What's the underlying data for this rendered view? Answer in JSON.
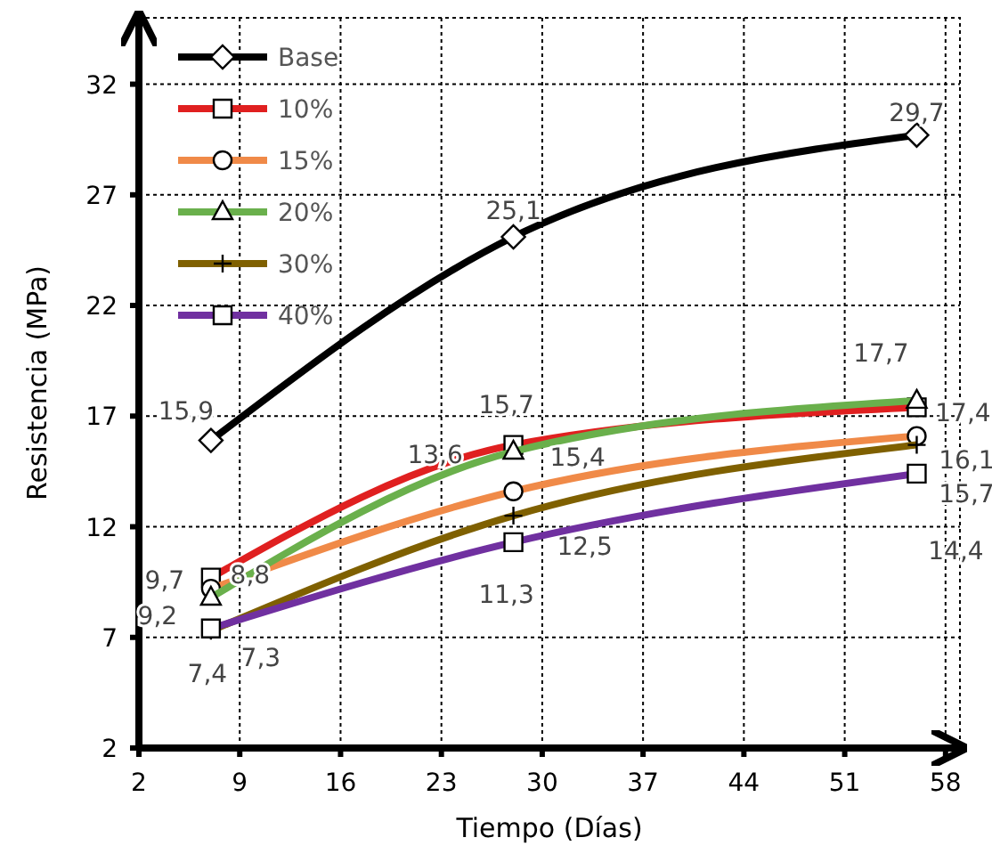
{
  "chart_data": {
    "type": "line",
    "xlabel": "Tiempo (Días)",
    "ylabel": "Resistencia (MPa)",
    "x": [
      7,
      28,
      56
    ],
    "xlim": [
      2,
      59
    ],
    "ylim": [
      2,
      35
    ],
    "xticks": [
      2,
      9,
      16,
      23,
      30,
      37,
      44,
      51,
      58
    ],
    "yticks": [
      2,
      7,
      12,
      17,
      22,
      27,
      32
    ],
    "grid": true,
    "legend": "top left",
    "line_style": "solid",
    "series": [
      {
        "name": "Base",
        "color": "#000000",
        "marker": "diamond",
        "values": [
          15.9,
          25.1,
          29.7
        ],
        "value_labels": [
          "15,9",
          "25,1",
          "29,7"
        ]
      },
      {
        "name": "10%",
        "color": "#e02020",
        "marker": "square",
        "values": [
          9.7,
          15.7,
          17.4
        ],
        "value_labels": [
          "9,7",
          "15,7",
          "17,4"
        ]
      },
      {
        "name": "15%",
        "color": "#f08a48",
        "marker": "circle",
        "values": [
          9.2,
          13.6,
          16.1
        ],
        "value_labels": [
          "9,2",
          "13,6",
          "16,1"
        ]
      },
      {
        "name": "20%",
        "color": "#6ab04c",
        "marker": "triangle",
        "values": [
          8.8,
          15.4,
          17.7
        ],
        "value_labels": [
          "8,8",
          "15,4",
          "17,7"
        ]
      },
      {
        "name": "30%",
        "color": "#7f6000",
        "marker": "cross",
        "values": [
          7.3,
          12.5,
          15.7
        ],
        "value_labels": [
          "7,3",
          "12,5",
          "15,7"
        ]
      },
      {
        "name": "40%",
        "color": "#7030a0",
        "marker": "square",
        "values": [
          7.4,
          11.3,
          14.4
        ],
        "value_labels": [
          "7,4",
          "11,3",
          "14,4"
        ]
      }
    ]
  }
}
